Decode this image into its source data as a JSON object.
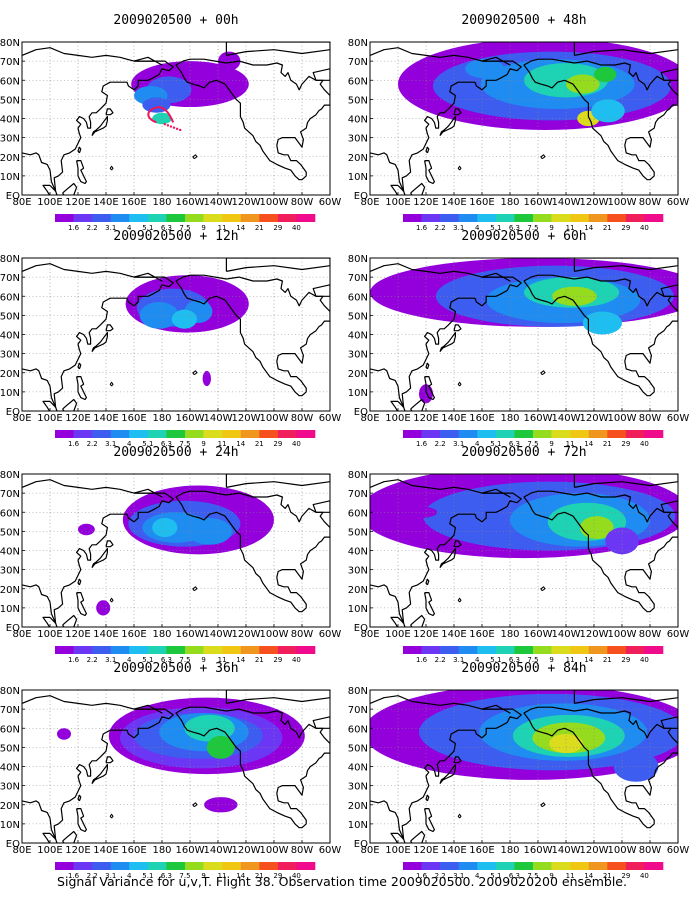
{
  "figure": {
    "caption": "Signal Variance for u,v,T. Flight 38. Observation time 2009020500. 2009020200 ensemble."
  },
  "chart_data": {
    "type": "heatmap",
    "variable": "Signal Variance",
    "levels": [
      1.6,
      2.2,
      3.1,
      4,
      5.1,
      6.3,
      7.5,
      9,
      11,
      14,
      21,
      29,
      40
    ],
    "level_labels": [
      "1.6",
      "2.2",
      "3.1",
      "4",
      "5.1",
      "6.3",
      "7.5",
      "9",
      "11",
      "14",
      "21",
      "29",
      "40"
    ],
    "colors": [
      "#9300dc",
      "#6b37f5",
      "#3d5cf0",
      "#1e8cf0",
      "#1ebef0",
      "#1ed2b4",
      "#1ec83c",
      "#96dc1e",
      "#dcdc1e",
      "#f0c814",
      "#f0961e",
      "#f5501e",
      "#f01e5a",
      "#f00a8c"
    ],
    "x_ticks": [
      "80E",
      "100E",
      "120E",
      "140E",
      "160E",
      "180",
      "160W",
      "140W",
      "120W",
      "100W",
      "80W",
      "60W"
    ],
    "y_ticks": [
      "80N",
      "70N",
      "60N",
      "50N",
      "40N",
      "30N",
      "20N",
      "10N",
      "EQ"
    ],
    "xlim": [
      "80E",
      "60W"
    ],
    "ylim": [
      "EQ",
      "80N"
    ],
    "grid": true,
    "panels": [
      {
        "title": "2009020500 + 00h",
        "forecast_hour": 0,
        "max_level": "7.5"
      },
      {
        "title": "2009020500 + 12h",
        "forecast_hour": 12,
        "max_level": "6.3"
      },
      {
        "title": "2009020500 + 24h",
        "forecast_hour": 24,
        "max_level": "6.3"
      },
      {
        "title": "2009020500 + 36h",
        "forecast_hour": 36,
        "max_level": "9"
      },
      {
        "title": "2009020500 + 48h",
        "forecast_hour": 48,
        "max_level": "11"
      },
      {
        "title": "2009020500 + 60h",
        "forecast_hour": 60,
        "max_level": "11"
      },
      {
        "title": "2009020500 + 72h",
        "forecast_hour": 72,
        "max_level": "11"
      },
      {
        "title": "2009020500 + 84h",
        "forecast_hour": 84,
        "max_level": "14"
      }
    ]
  }
}
